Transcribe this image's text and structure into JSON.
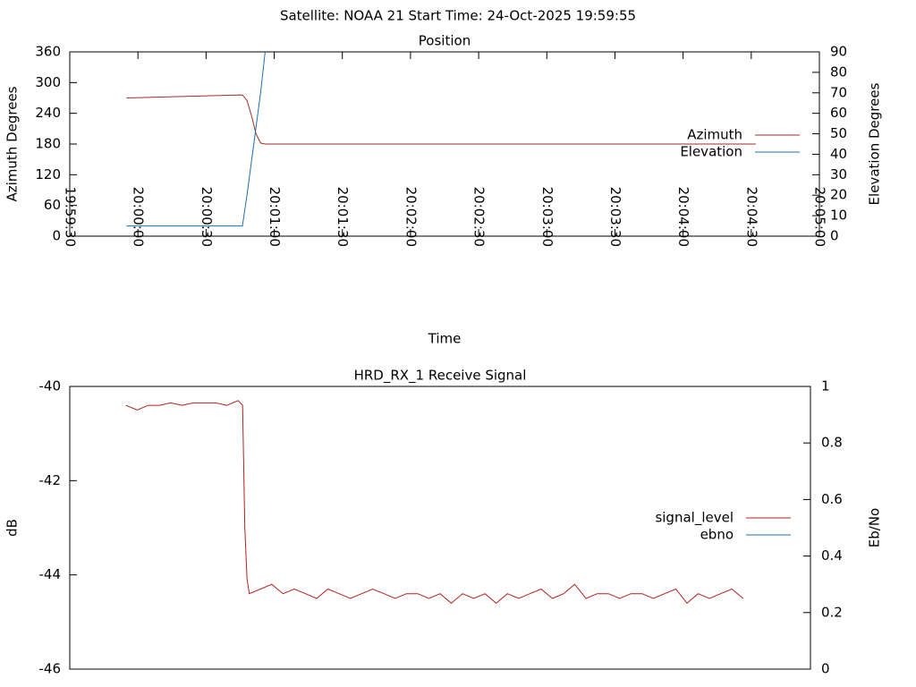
{
  "title": "Satellite: NOAA 21    Start Time: 24-Oct-2025 19:59:55",
  "chart_data": [
    {
      "type": "line",
      "title": "Position",
      "xlabel": "Time",
      "ylabel": "Azimuth Degrees",
      "y2label": "Elevation Degrees",
      "xlim": [
        "19:59:30",
        "20:05:00"
      ],
      "xticks": [
        "19:59:30",
        "20:00:00",
        "20:00:30",
        "20:01:00",
        "20:01:30",
        "20:02:00",
        "20:02:30",
        "20:03:00",
        "20:03:30",
        "20:04:00",
        "20:04:30",
        "20:05:00"
      ],
      "ylim": [
        0,
        360
      ],
      "yticks": [
        0,
        60,
        120,
        180,
        240,
        300,
        360
      ],
      "y2lim": [
        0,
        90
      ],
      "y2ticks": [
        0,
        10,
        20,
        30,
        40,
        50,
        60,
        70,
        80,
        90
      ],
      "legend": "right",
      "series": [
        {
          "name": "Azimuth",
          "color": "#a52a2a",
          "x": [
            "19:59:55",
            "20:00:46",
            "20:00:48",
            "20:00:50",
            "20:00:52",
            "20:00:54",
            "20:00:56",
            "20:04:32"
          ],
          "values": [
            270,
            276,
            265,
            235,
            200,
            182,
            180,
            180
          ]
        },
        {
          "name": "Elevation",
          "color": "#1f6fb4",
          "axis": "y2",
          "x": [
            "19:59:55",
            "20:00:46",
            "20:00:48",
            "20:00:51",
            "20:00:54",
            "20:00:56"
          ],
          "values": [
            5,
            5,
            20,
            45,
            70,
            90
          ]
        }
      ]
    },
    {
      "type": "line",
      "title": "HRD_RX_1 Receive Signal",
      "ylabel": "dB",
      "y2label": "Eb/No",
      "xlim": [
        "19:59:30",
        "20:05:00"
      ],
      "ylim": [
        -46,
        -40
      ],
      "yticks": [
        -46,
        -44,
        -42,
        -40
      ],
      "y2lim": [
        0,
        1
      ],
      "y2ticks": [
        0,
        0.2,
        0.4,
        0.6,
        0.8,
        1
      ],
      "legend": "right",
      "x": [
        "19:59:55",
        "20:00:00",
        "20:00:05",
        "20:00:10",
        "20:00:15",
        "20:00:20",
        "20:00:25",
        "20:00:30",
        "20:00:35",
        "20:00:40",
        "20:00:45",
        "20:00:47",
        "20:00:48",
        "20:00:49",
        "20:00:50",
        "20:00:55",
        "20:01:00",
        "20:01:05",
        "20:01:10",
        "20:01:15",
        "20:01:20",
        "20:01:25",
        "20:01:30",
        "20:01:35",
        "20:01:40",
        "20:01:45",
        "20:01:50",
        "20:01:55",
        "20:02:00",
        "20:02:05",
        "20:02:10",
        "20:02:15",
        "20:02:20",
        "20:02:25",
        "20:02:30",
        "20:02:35",
        "20:02:40",
        "20:02:45",
        "20:02:50",
        "20:02:55",
        "20:03:00",
        "20:03:05",
        "20:03:10",
        "20:03:15",
        "20:03:20",
        "20:03:25",
        "20:03:30",
        "20:03:35",
        "20:03:40",
        "20:03:45",
        "20:03:50",
        "20:03:55",
        "20:04:00",
        "20:04:05",
        "20:04:10",
        "20:04:15",
        "20:04:20",
        "20:04:25",
        "20:04:30"
      ],
      "series": [
        {
          "name": "signal_level",
          "color": "#b22222",
          "values": [
            -40.4,
            -40.5,
            -40.4,
            -40.4,
            -40.35,
            -40.4,
            -40.35,
            -40.35,
            -40.35,
            -40.4,
            -40.3,
            -40.4,
            -43.0,
            -44.1,
            -44.4,
            -44.3,
            -44.2,
            -44.4,
            -44.3,
            -44.4,
            -44.5,
            -44.3,
            -44.4,
            -44.5,
            -44.4,
            -44.3,
            -44.4,
            -44.5,
            -44.4,
            -44.4,
            -44.5,
            -44.4,
            -44.6,
            -44.4,
            -44.5,
            -44.4,
            -44.6,
            -44.4,
            -44.5,
            -44.4,
            -44.3,
            -44.5,
            -44.4,
            -44.2,
            -44.5,
            -44.4,
            -44.4,
            -44.5,
            -44.4,
            -44.4,
            -44.5,
            -44.4,
            -44.3,
            -44.6,
            -44.4,
            -44.5,
            -44.4,
            -44.3,
            -44.5
          ]
        },
        {
          "name": "ebno",
          "color": "#1f6fb4",
          "axis": "y2",
          "values": [
            null,
            null,
            null,
            null,
            null,
            null,
            null,
            null,
            null,
            null,
            null,
            null,
            null,
            null,
            null,
            null,
            null,
            null,
            null,
            null,
            null,
            null,
            null,
            null,
            null,
            null,
            null,
            null,
            null,
            null,
            null,
            null,
            null,
            null,
            null,
            null,
            null,
            null,
            null,
            null,
            null,
            null,
            null,
            null,
            null,
            null,
            null,
            null,
            null,
            null,
            null,
            null,
            null,
            null,
            null,
            null,
            null,
            null,
            null
          ]
        }
      ]
    }
  ]
}
